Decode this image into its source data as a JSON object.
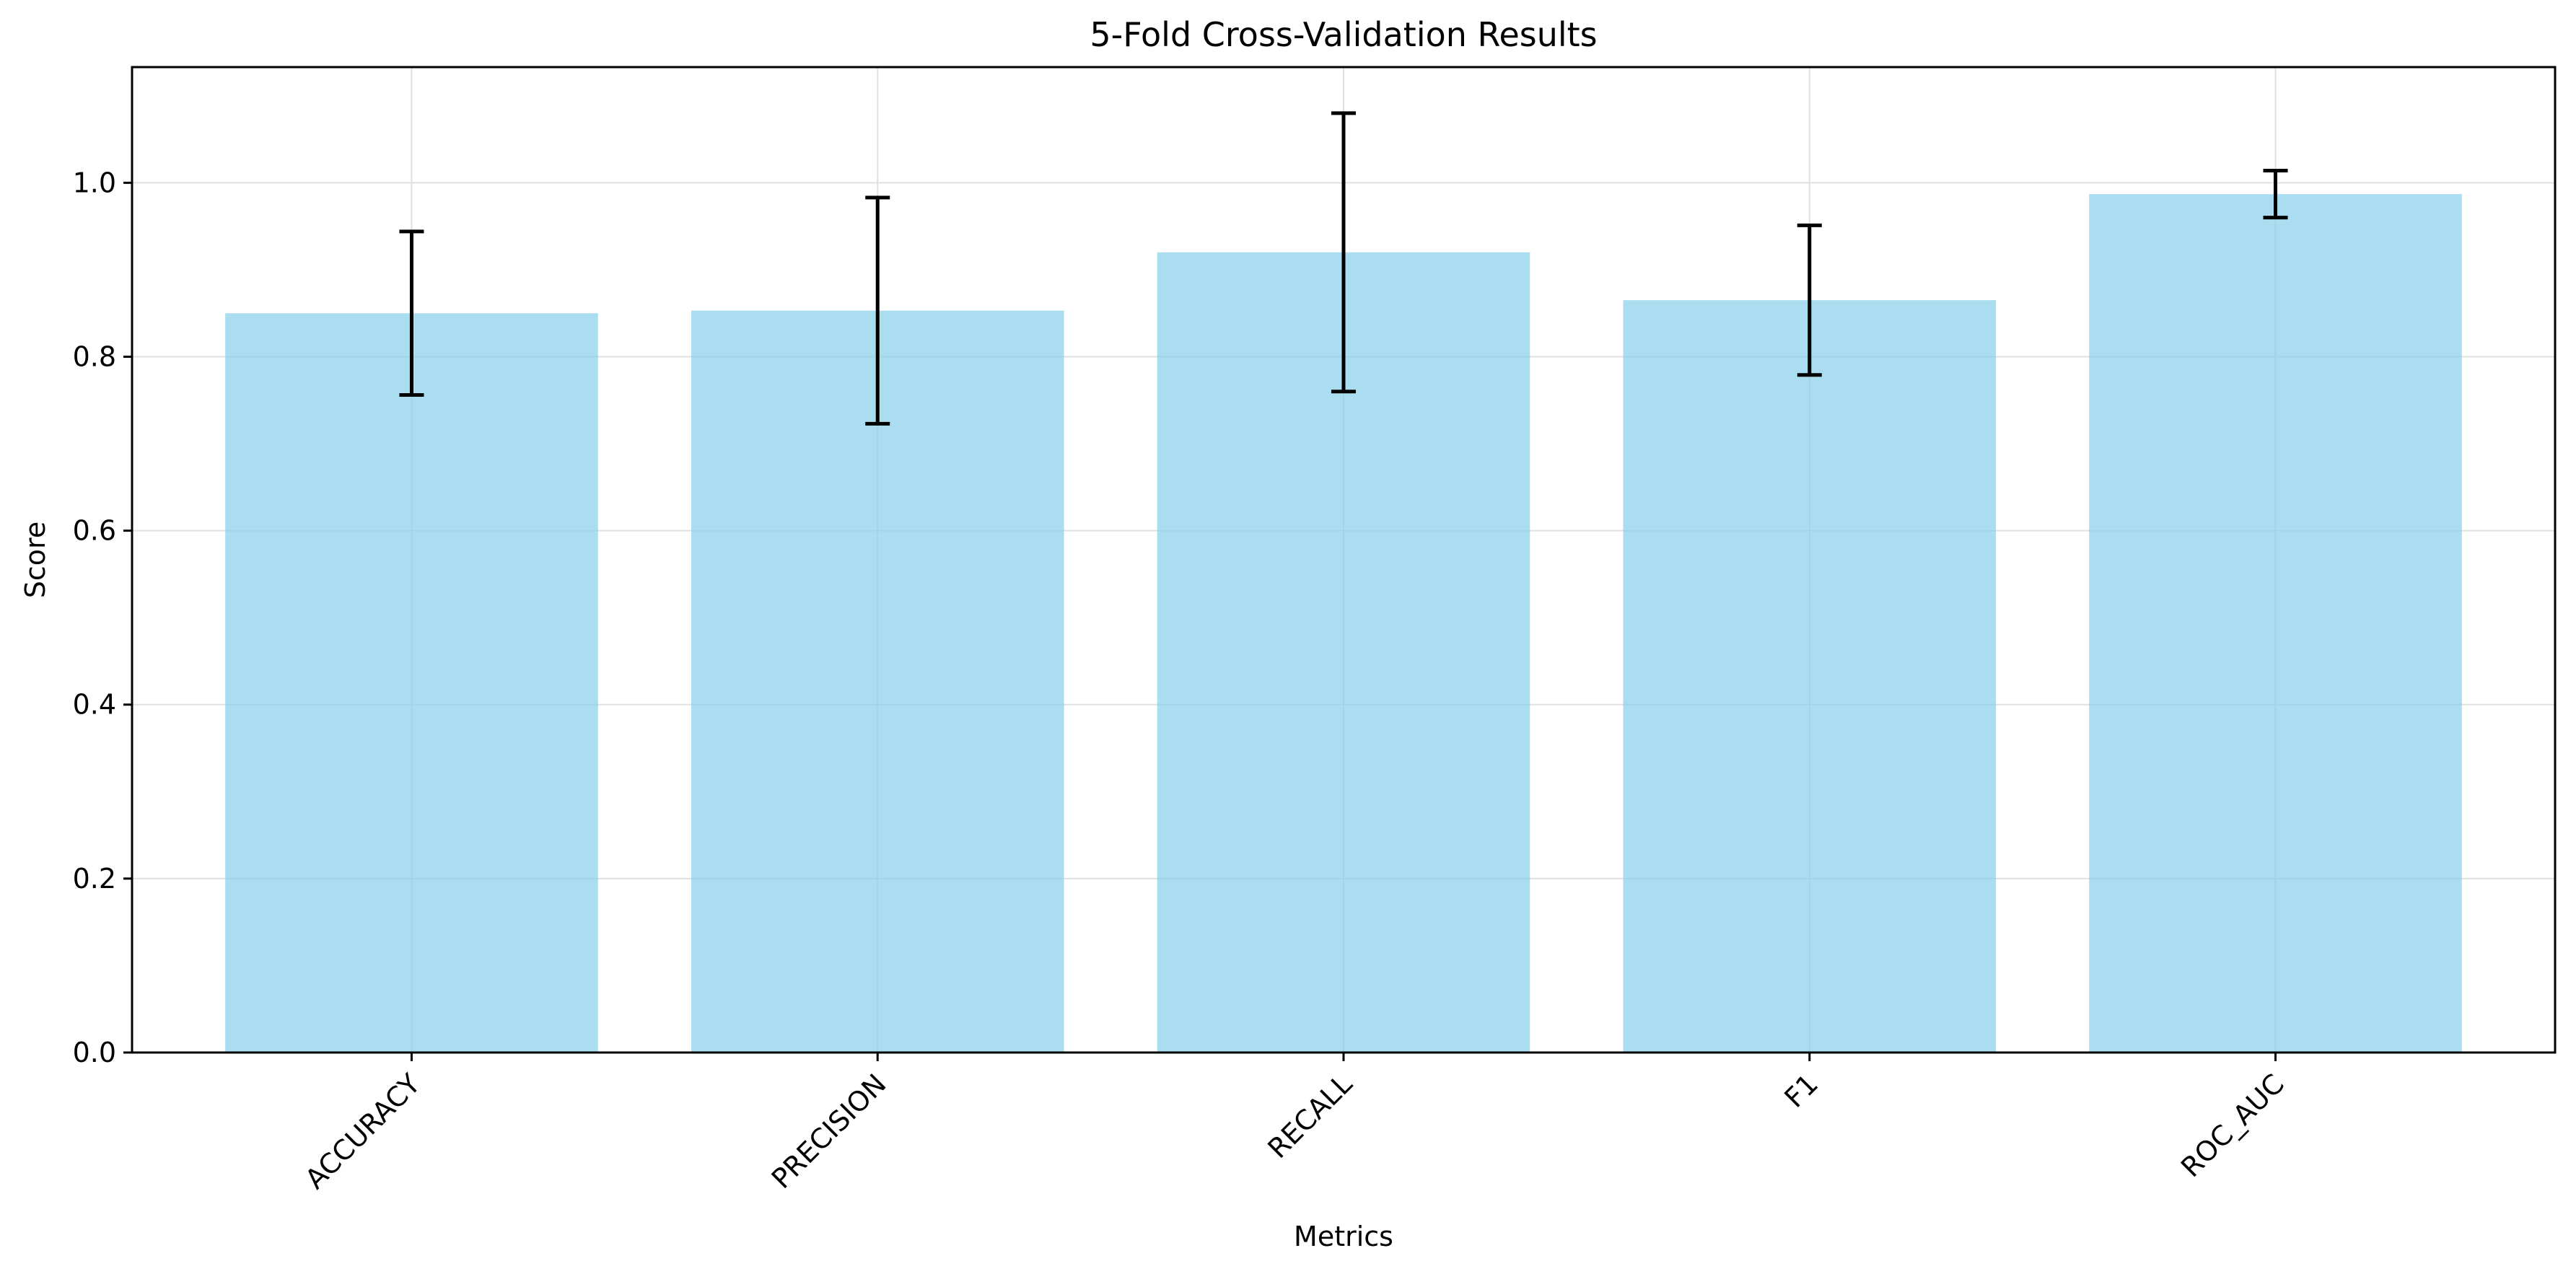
{
  "chart_data": {
    "type": "bar",
    "title": "5-Fold Cross-Validation Results",
    "xlabel": "Metrics",
    "ylabel": "Score",
    "categories": [
      "ACCURACY",
      "PRECISION",
      "RECALL",
      "F1",
      "ROC_AUC"
    ],
    "values": [
      0.85,
      0.853,
      0.92,
      0.865,
      0.987
    ],
    "errors": [
      0.094,
      0.13,
      0.16,
      0.086,
      0.027
    ],
    "ylim": [
      0,
      1.133
    ],
    "yticks": [
      "0.0",
      "0.2",
      "0.4",
      "0.6",
      "0.8",
      "1.0"
    ],
    "grid": true,
    "legend": "none",
    "colors": {
      "bar": "#87ceeb",
      "bar_opacity": 0.7,
      "error_bar": "#000000",
      "grid": "#e0e0e0",
      "axes": "#000000"
    }
  }
}
